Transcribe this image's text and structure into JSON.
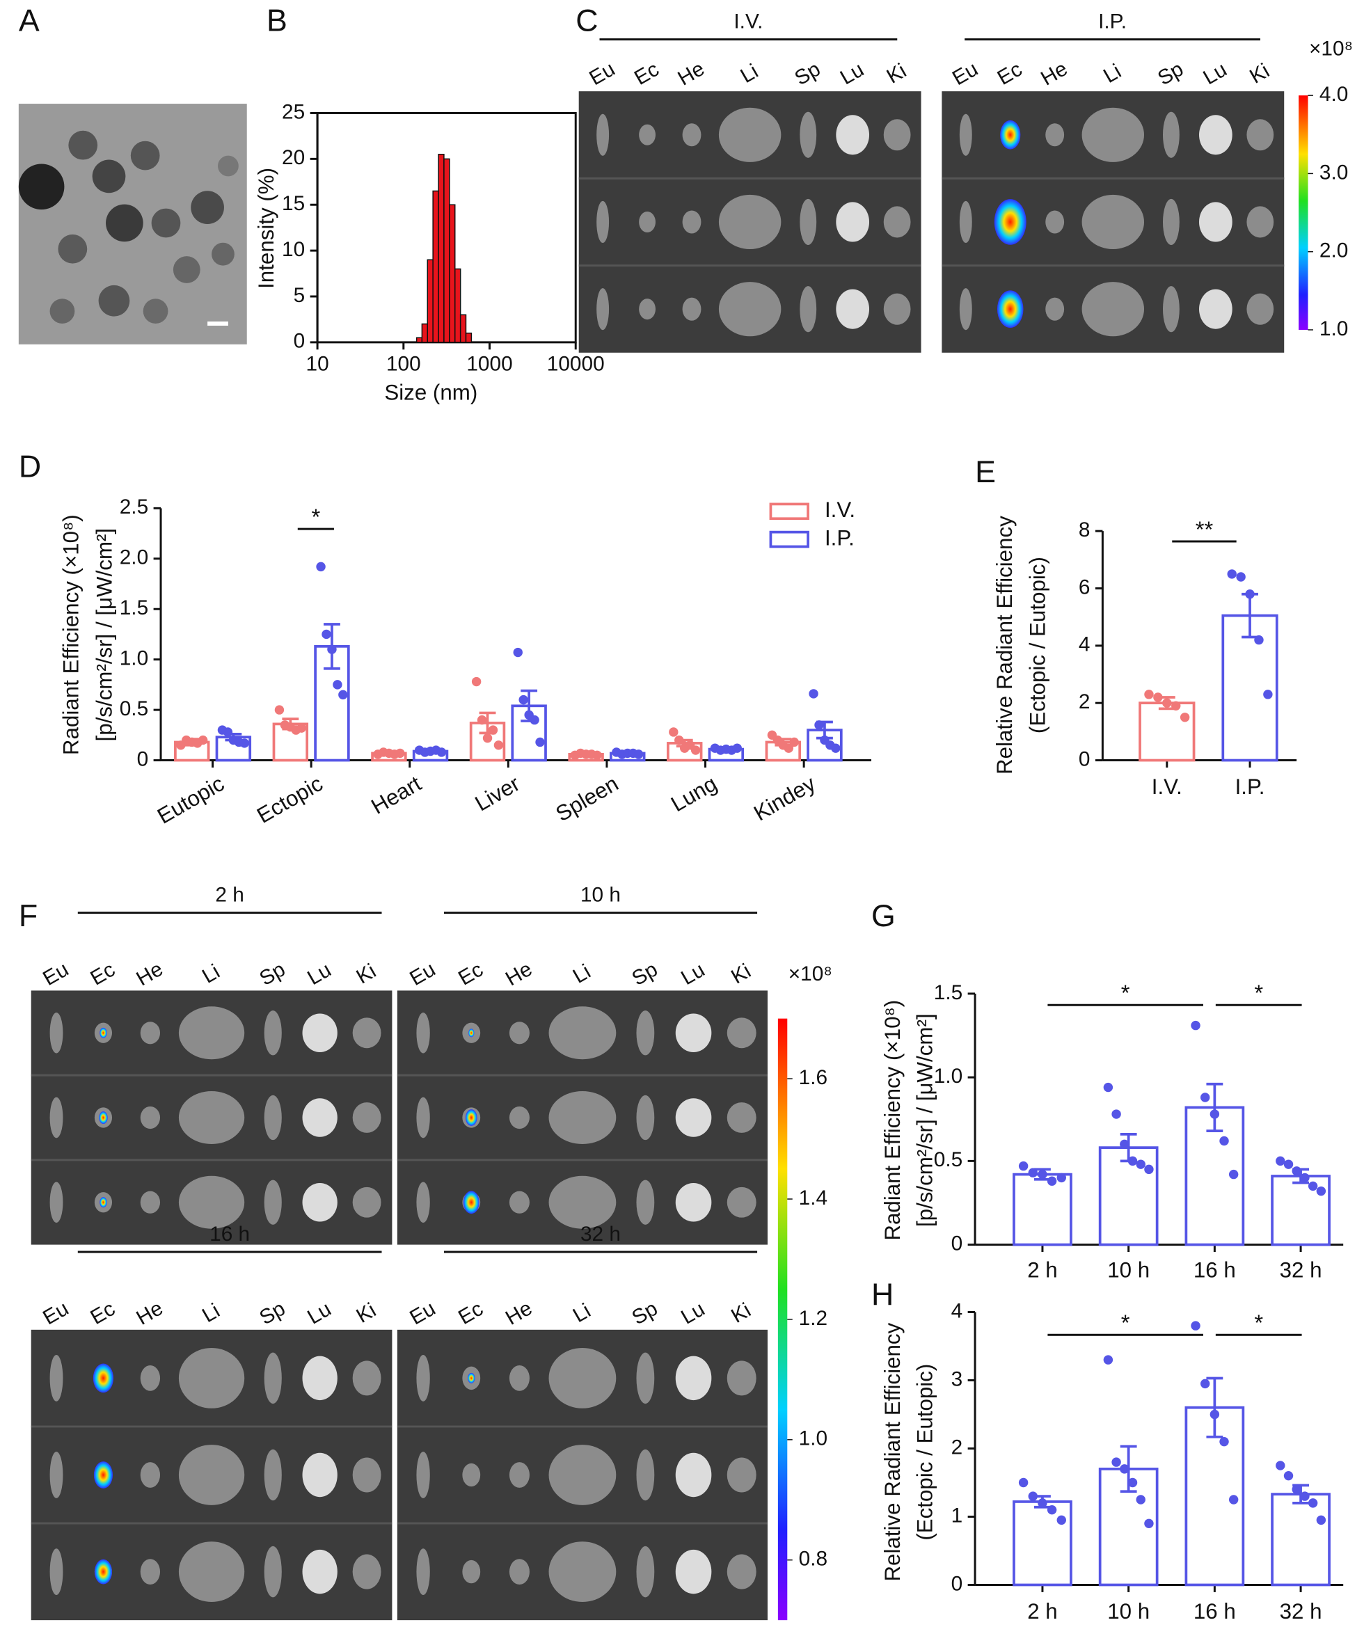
{
  "panel_labels": [
    "A",
    "B",
    "C",
    "D",
    "E",
    "F",
    "G",
    "H"
  ],
  "organs": [
    "Eu",
    "Ec",
    "He",
    "Li",
    "Sp",
    "Lu",
    "Ki"
  ],
  "panel_c": {
    "groups": [
      "I.V.",
      "I.P."
    ],
    "colorbar": {
      "unit": "×10⁸",
      "ticks": [
        {
          "value": 4,
          "label": "4.0"
        },
        {
          "value": 3,
          "label": "3.0"
        },
        {
          "value": 2,
          "label": "2.0"
        },
        {
          "value": 1,
          "label": "1.0"
        }
      ]
    }
  },
  "panel_f": {
    "groups": [
      "2 h",
      "10 h",
      "16 h",
      "32 h"
    ],
    "colorbar": {
      "unit": "×10⁸",
      "ticks": [
        1.6,
        1.4,
        1.2,
        {
          "value": 1,
          "label": "1.0"
        },
        0.8
      ]
    }
  },
  "chart_data": [
    {
      "type": "histogram",
      "xlabel": "Size (nm)",
      "ylabel": "Intensity (%)",
      "log_x": true,
      "color": "#e8141c",
      "bins": [
        142,
        164,
        190,
        220,
        255,
        295,
        342,
        396,
        459,
        531,
        615
      ],
      "values": [
        0.5,
        2,
        9,
        16.5,
        20.5,
        20,
        15,
        8,
        3,
        1
      ],
      "xlim": [
        10,
        10000
      ],
      "xticks": [
        10,
        100,
        1000,
        10000
      ],
      "ylim": [
        0,
        25
      ],
      "yticks": [
        0,
        5,
        10,
        15,
        20,
        25
      ]
    },
    {
      "type": "bar",
      "ylabel": [
        "Radiant Efficiency (×10⁸)",
        "[p/s/cm²/sr] / [μW/cm²]"
      ],
      "categories": [
        "Eutopic",
        "Ectopic",
        "Heart",
        "Liver",
        "Spleen",
        "Lung",
        "Kindey"
      ],
      "series": [
        {
          "name": "I.V.",
          "color": "#f07878",
          "values": [
            0.18,
            0.36,
            0.07,
            0.37,
            0.06,
            0.17,
            0.18
          ],
          "errors": [
            0.03,
            0.05,
            0.01,
            0.1,
            0.01,
            0.03,
            0.03
          ],
          "points": [
            [
              0.15,
              0.2,
              0.18,
              0.17,
              0.2
            ],
            [
              0.5,
              0.35,
              0.33,
              0.3,
              0.32
            ],
            [
              0.06,
              0.08,
              0.07,
              0.06,
              0.07
            ],
            [
              0.78,
              0.4,
              0.22,
              0.3,
              0.15
            ],
            [
              0.05,
              0.07,
              0.06,
              0.06,
              0.05
            ],
            [
              0.28,
              0.2,
              0.12,
              0.15,
              0.1
            ],
            [
              0.25,
              0.2,
              0.15,
              0.12,
              0.18
            ]
          ]
        },
        {
          "name": "I.P.",
          "color": "#5555e6",
          "values": [
            0.23,
            1.13,
            0.09,
            0.54,
            0.07,
            0.11,
            0.3
          ],
          "errors": [
            0.03,
            0.22,
            0.01,
            0.15,
            0.01,
            0.01,
            0.08
          ],
          "points": [
            [
              0.3,
              0.28,
              0.2,
              0.18,
              0.17
            ],
            [
              1.92,
              1.25,
              1.1,
              0.75,
              0.65
            ],
            [
              0.1,
              0.08,
              0.09,
              0.1,
              0.08
            ],
            [
              1.07,
              0.6,
              0.45,
              0.4,
              0.18
            ],
            [
              0.08,
              0.06,
              0.07,
              0.07,
              0.06
            ],
            [
              0.12,
              0.1,
              0.11,
              0.1,
              0.12
            ],
            [
              0.66,
              0.35,
              0.2,
              0.15,
              0.12
            ]
          ]
        }
      ],
      "ylim": [
        0,
        2.5
      ],
      "yticks": [
        0,
        0.5,
        {
          "value": 1,
          "label": "1.0"
        },
        1.5,
        {
          "value": 2,
          "label": "2.0"
        },
        2.5
      ],
      "annotations": [
        "*"
      ]
    },
    {
      "type": "bar",
      "ylabel": [
        "Relative Radiant Efficiency",
        "(Ectopic / Eutopic)"
      ],
      "categories": [
        "I.V.",
        "I.P."
      ],
      "colors": [
        "#f07878",
        "#5555e6"
      ],
      "values": [
        2.0,
        5.05
      ],
      "errors": [
        0.2,
        0.75
      ],
      "points": [
        [
          2.3,
          2.2,
          2.0,
          1.9,
          1.5
        ],
        [
          6.5,
          6.4,
          5.8,
          4.2,
          2.3
        ]
      ],
      "ylim": [
        0,
        8
      ],
      "yticks": [
        0,
        2,
        4,
        6,
        8
      ],
      "annotations": [
        "**"
      ]
    },
    {
      "type": "bar",
      "ylabel": [
        "Radiant Efficiency (×10⁸)",
        "[p/s/cm²/sr] / [μW/cm²]"
      ],
      "categories": [
        "2 h",
        "10 h",
        "16 h",
        "32 h"
      ],
      "color": "#5555e6",
      "values": [
        0.42,
        0.58,
        0.82,
        0.41
      ],
      "errors": [
        0.03,
        0.08,
        0.14,
        0.04
      ],
      "points": [
        [
          0.47,
          0.43,
          0.42,
          0.38,
          0.4
        ],
        [
          0.94,
          0.78,
          0.6,
          0.5,
          0.48,
          0.45
        ],
        [
          1.31,
          0.88,
          0.78,
          0.62,
          0.42
        ],
        [
          0.5,
          0.48,
          0.44,
          0.4,
          0.35,
          0.32
        ]
      ],
      "ylim": [
        0,
        1.5
      ],
      "yticks": [
        0,
        0.5,
        {
          "value": 1,
          "label": "1.0"
        },
        1.5
      ],
      "annotations": [
        "*",
        "*"
      ]
    },
    {
      "type": "bar",
      "ylabel": [
        "Relative Radiant Efficiency",
        "(Ectopic / Eutopic)"
      ],
      "categories": [
        "2 h",
        "10 h",
        "16 h",
        "32 h"
      ],
      "color": "#5555e6",
      "values": [
        1.22,
        1.7,
        2.6,
        1.33
      ],
      "errors": [
        0.08,
        0.33,
        0.43,
        0.13
      ],
      "points": [
        [
          1.5,
          1.3,
          1.2,
          1.1,
          0.95
        ],
        [
          3.3,
          1.8,
          1.7,
          1.5,
          1.25,
          0.9
        ],
        [
          3.8,
          2.95,
          2.5,
          2.1,
          1.25
        ],
        [
          1.75,
          1.6,
          1.4,
          1.3,
          1.2,
          0.95
        ]
      ],
      "ylim": [
        0,
        4
      ],
      "yticks": [
        0,
        1,
        2,
        3,
        4
      ],
      "annotations": [
        "*",
        "*"
      ]
    }
  ]
}
